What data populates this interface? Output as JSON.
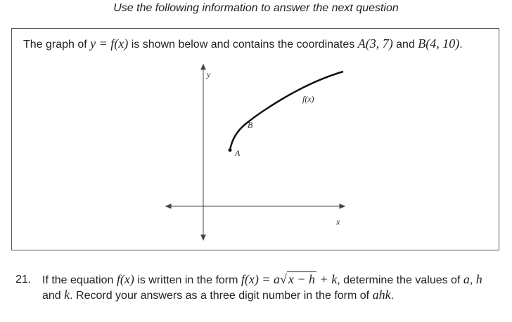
{
  "header": "Use the following information to answer the next question",
  "info": {
    "segments": [
      "The graph of ",
      "y = f(x)",
      " is shown below and contains the coordinates ",
      "A(3, 7)",
      " and ",
      "B(4, 10)",
      "."
    ]
  },
  "graph": {
    "y_label": "y",
    "x_label": "x",
    "curve_label": "f(x)",
    "point_a": "A",
    "point_b": "B"
  },
  "question": {
    "number": "21.",
    "segments": [
      "If the equation ",
      "f(x)",
      " is written in the form ",
      "f(x) = a",
      "x − h",
      " + k",
      ", determine the values of ",
      "a",
      ", ",
      "h",
      " and ",
      "k",
      ". Record your answers as a three digit number in the form of ",
      "ahk",
      "."
    ]
  }
}
